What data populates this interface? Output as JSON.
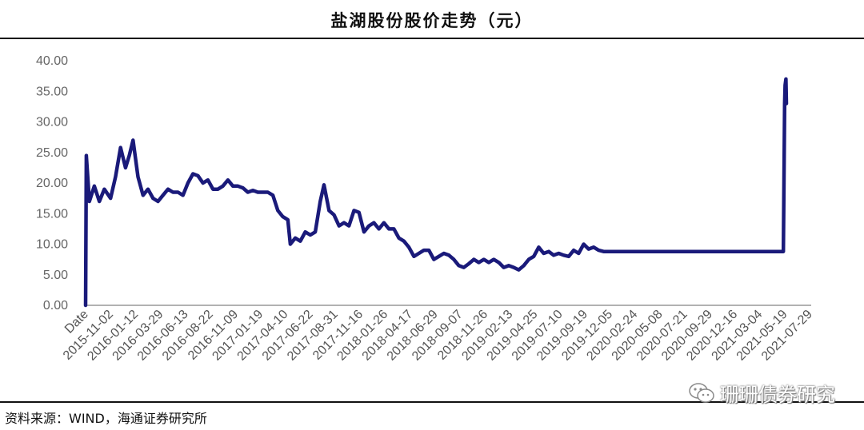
{
  "title": "盐湖股份股价走势（元）",
  "source": "资料来源：WIND，海通证券研究所",
  "watermark": "珊珊债券研究",
  "colors": {
    "line": "#1a1a7a",
    "axis": "#999999",
    "text": "#666666"
  },
  "chart_data": {
    "type": "line",
    "title": "盐湖股份股价走势（元）",
    "xlabel": "",
    "ylabel": "",
    "ylim": [
      0,
      40
    ],
    "yticks": [
      "0.00",
      "5.00",
      "10.00",
      "15.00",
      "20.00",
      "25.00",
      "30.00",
      "35.00",
      "40.00"
    ],
    "grid": false,
    "legend": "none",
    "categories": [
      "Date",
      "2015-11-02",
      "2016-01-12",
      "2016-03-29",
      "2016-06-13",
      "2016-08-22",
      "2016-11-09",
      "2017-01-19",
      "2017-04-10",
      "2017-06-22",
      "2017-08-31",
      "2017-11-16",
      "2018-01-26",
      "2018-04-17",
      "2018-06-29",
      "2018-09-07",
      "2018-11-26",
      "2019-02-13",
      "2019-04-25",
      "2019-07-10",
      "2019-09-19",
      "2019-12-05",
      "2020-02-24",
      "2020-05-08",
      "2020-07-21",
      "2020-09-29",
      "2020-12-16",
      "2021-03-04",
      "2021-05-19",
      "2021-07-29"
    ],
    "series": [
      {
        "values": [
          [
            0.0,
            0
          ],
          [
            0.03,
            24.5
          ],
          [
            0.15,
            17
          ],
          [
            0.35,
            19.5
          ],
          [
            0.55,
            17
          ],
          [
            0.75,
            19
          ],
          [
            1.0,
            17.5
          ],
          [
            1.2,
            21
          ],
          [
            1.4,
            25.8
          ],
          [
            1.6,
            22.5
          ],
          [
            1.75,
            24.5
          ],
          [
            1.9,
            27
          ],
          [
            2.1,
            21
          ],
          [
            2.3,
            18
          ],
          [
            2.5,
            19
          ],
          [
            2.7,
            17.5
          ],
          [
            2.9,
            17
          ],
          [
            3.1,
            18
          ],
          [
            3.3,
            19
          ],
          [
            3.5,
            18.5
          ],
          [
            3.7,
            18.5
          ],
          [
            3.9,
            18
          ],
          [
            4.1,
            20
          ],
          [
            4.3,
            21.5
          ],
          [
            4.5,
            21.2
          ],
          [
            4.7,
            20
          ],
          [
            4.9,
            20.5
          ],
          [
            5.1,
            19
          ],
          [
            5.3,
            19
          ],
          [
            5.5,
            19.5
          ],
          [
            5.7,
            20.5
          ],
          [
            5.9,
            19.5
          ],
          [
            6.1,
            19.5
          ],
          [
            6.3,
            19.2
          ],
          [
            6.5,
            18.5
          ],
          [
            6.7,
            18.8
          ],
          [
            6.9,
            18.5
          ],
          [
            7.1,
            18.5
          ],
          [
            7.3,
            18.5
          ],
          [
            7.5,
            18
          ],
          [
            7.7,
            15.5
          ],
          [
            7.9,
            14.5
          ],
          [
            8.1,
            14
          ],
          [
            8.2,
            10
          ],
          [
            8.4,
            11
          ],
          [
            8.6,
            10.5
          ],
          [
            8.8,
            12
          ],
          [
            9.0,
            11.5
          ],
          [
            9.2,
            12
          ],
          [
            9.4,
            17
          ],
          [
            9.55,
            19.7
          ],
          [
            9.75,
            15.5
          ],
          [
            9.95,
            14.8
          ],
          [
            10.15,
            13
          ],
          [
            10.35,
            13.5
          ],
          [
            10.55,
            13
          ],
          [
            10.75,
            15.5
          ],
          [
            10.95,
            15.2
          ],
          [
            11.15,
            12
          ],
          [
            11.35,
            13
          ],
          [
            11.55,
            13.5
          ],
          [
            11.75,
            12.5
          ],
          [
            11.95,
            13.5
          ],
          [
            12.15,
            12.5
          ],
          [
            12.35,
            12.5
          ],
          [
            12.55,
            11
          ],
          [
            12.75,
            10.5
          ],
          [
            12.95,
            9.5
          ],
          [
            13.15,
            8
          ],
          [
            13.35,
            8.5
          ],
          [
            13.55,
            9
          ],
          [
            13.75,
            9
          ],
          [
            13.95,
            7.5
          ],
          [
            14.15,
            8
          ],
          [
            14.35,
            8.5
          ],
          [
            14.55,
            8.2
          ],
          [
            14.75,
            7.5
          ],
          [
            14.95,
            6.5
          ],
          [
            15.15,
            6.2
          ],
          [
            15.35,
            6.8
          ],
          [
            15.55,
            7.5
          ],
          [
            15.75,
            7
          ],
          [
            15.95,
            7.5
          ],
          [
            16.15,
            7
          ],
          [
            16.35,
            7.5
          ],
          [
            16.55,
            7
          ],
          [
            16.75,
            6.2
          ],
          [
            16.95,
            6.5
          ],
          [
            17.15,
            6.2
          ],
          [
            17.35,
            5.8
          ],
          [
            17.55,
            6.5
          ],
          [
            17.75,
            7.5
          ],
          [
            17.95,
            8
          ],
          [
            18.15,
            9.5
          ],
          [
            18.35,
            8.5
          ],
          [
            18.55,
            8.8
          ],
          [
            18.75,
            8.2
          ],
          [
            18.95,
            8.5
          ],
          [
            19.15,
            8.2
          ],
          [
            19.35,
            8
          ],
          [
            19.55,
            9
          ],
          [
            19.75,
            8.5
          ],
          [
            19.95,
            10
          ],
          [
            20.15,
            9.2
          ],
          [
            20.35,
            9.5
          ],
          [
            20.55,
            9
          ],
          [
            20.75,
            8.8
          ],
          [
            21.5,
            8.8
          ],
          [
            23,
            8.8
          ],
          [
            25,
            8.8
          ],
          [
            26.5,
            8.8
          ],
          [
            27.95,
            8.8
          ],
          [
            28.0,
            33
          ],
          [
            28.02,
            36
          ],
          [
            28.05,
            37
          ],
          [
            28.07,
            33
          ]
        ]
      }
    ]
  }
}
